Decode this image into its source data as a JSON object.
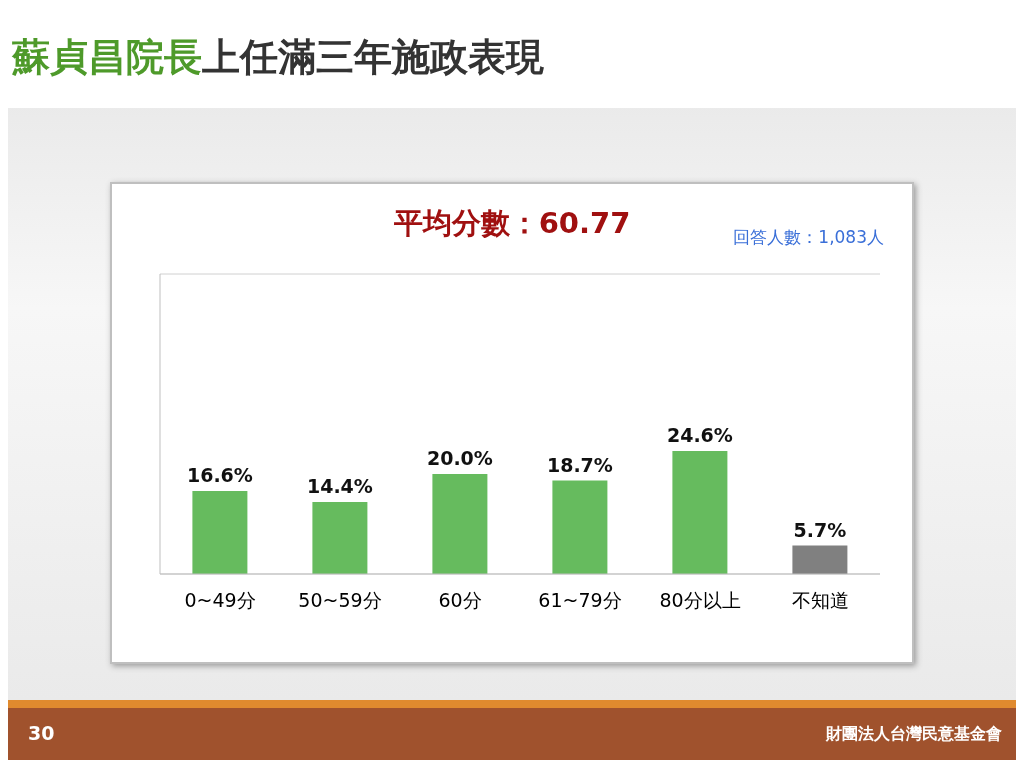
{
  "chart_data": {
    "type": "bar",
    "title": "蘇貞昌院長上任滿三年施政表現",
    "subtitle": "平均分數：60.77",
    "categories": [
      "0~49分",
      "50~59分",
      "60分",
      "61~79分",
      "80分以上",
      "不知道"
    ],
    "values": [
      16.6,
      14.4,
      20.0,
      18.7,
      24.6,
      5.7
    ],
    "colors": [
      "#66bb5e",
      "#66bb5e",
      "#66bb5e",
      "#66bb5e",
      "#66bb5e",
      "#808080"
    ],
    "value_labels": [
      "16.6%",
      "14.4%",
      "20.0%",
      "18.7%",
      "24.6%",
      "5.7%"
    ],
    "ylim": [
      0,
      60
    ],
    "tick_labels": "x",
    "grid": "y",
    "annotations": [
      "回答人數：1,083人",
      "30",
      "財團法人台灣民意基金會"
    ]
  }
}
